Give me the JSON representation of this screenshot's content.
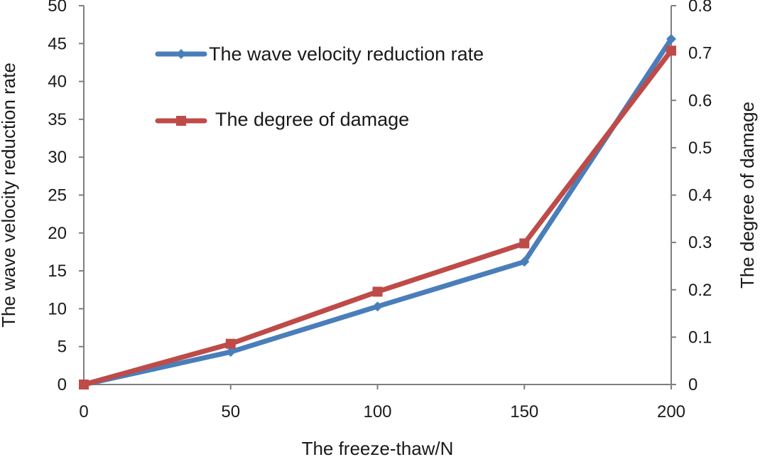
{
  "chart_data": {
    "type": "line",
    "xlabel": "The freeze-thaw/N",
    "ylabel": "The  wave velocity reduction rate",
    "y2label": "The  degree of damage",
    "x": [
      0,
      50,
      100,
      150,
      200
    ],
    "x_ticks": [
      "0",
      "50",
      "100",
      "150",
      "200"
    ],
    "xlim": [
      0,
      200
    ],
    "ylim": [
      0,
      50
    ],
    "y_ticks": [
      "0",
      "5",
      "10",
      "15",
      "20",
      "25",
      "30",
      "35",
      "40",
      "45",
      "50"
    ],
    "y2lim": [
      0,
      0.8
    ],
    "y2_ticks": [
      "0",
      "0.1",
      "0.2",
      "0.3",
      "0.4",
      "0.5",
      "0.6",
      "0.7",
      "0.8"
    ],
    "grid": false,
    "legend_position": "top-left",
    "series": [
      {
        "name": "The wave velocity reduction rate",
        "axis": "left",
        "marker": "diamond",
        "color": "#4a7ebb",
        "values": [
          0,
          4.3,
          10.3,
          16.2,
          45.6
        ]
      },
      {
        "name": "The degree of damage",
        "axis": "right",
        "marker": "square",
        "color": "#be4b48",
        "values": [
          0,
          0.086,
          0.196,
          0.298,
          0.705
        ]
      }
    ]
  }
}
